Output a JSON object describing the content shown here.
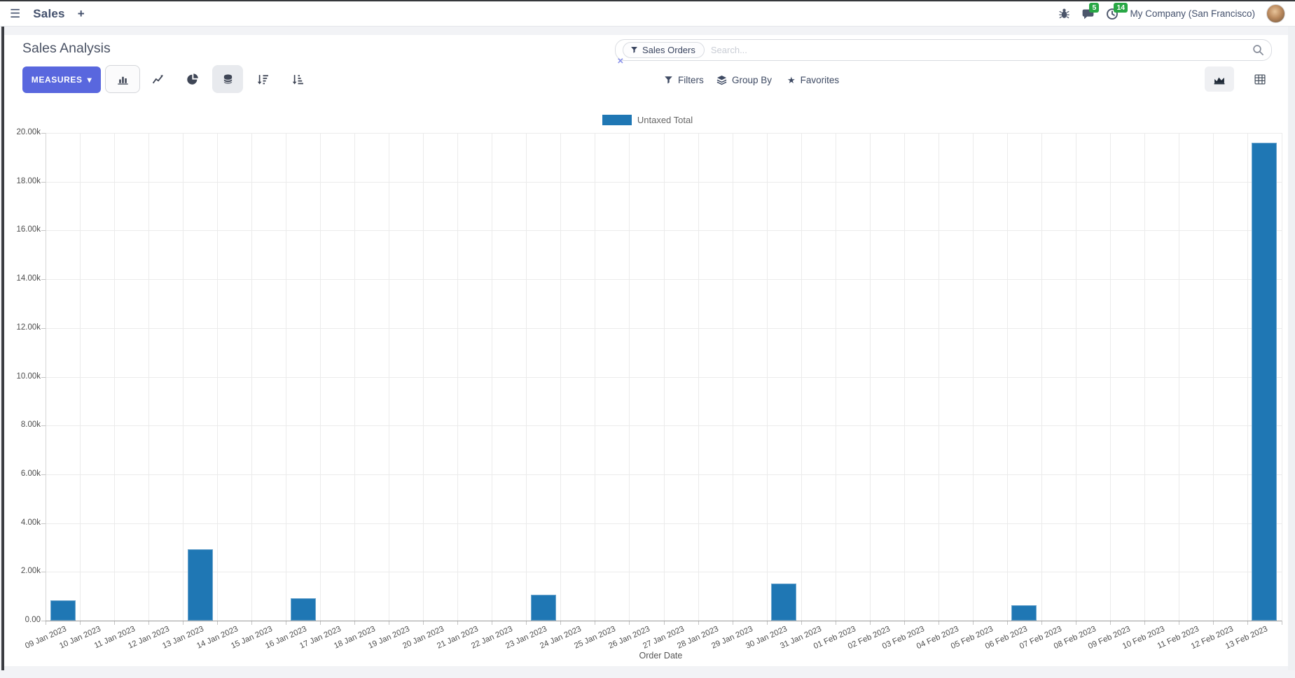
{
  "navbar": {
    "app_name": "Sales",
    "badges": {
      "messages": "5",
      "activities": "14"
    },
    "company": "My Company (San Francisco)"
  },
  "icons": {
    "hamburger": "☰",
    "plus": "+",
    "star": "★",
    "close": "✕",
    "caret_down": "▾"
  },
  "control_panel": {
    "title": "Sales Analysis",
    "measures_label": "MEASURES",
    "search": {
      "facet_label": "Sales Orders",
      "placeholder": "Search..."
    },
    "filters_label": "Filters",
    "group_by_label": "Group By",
    "favorites_label": "Favorites"
  },
  "colors": {
    "accent": "#5967de",
    "bar": "#1f77b4",
    "badge_green": "#28a745"
  },
  "chart_data": {
    "type": "bar",
    "title": "Sales Analysis",
    "xlabel": "Order Date",
    "ylabel": "",
    "ylim": [
      0,
      20000
    ],
    "ytick_step": 2000,
    "ytick_labels": [
      "0.00",
      "2.00k",
      "4.00k",
      "6.00k",
      "8.00k",
      "10.00k",
      "12.00k",
      "14.00k",
      "16.00k",
      "18.00k",
      "20.00k"
    ],
    "grid": true,
    "legend_position": "top-center",
    "categories": [
      "09 Jan 2023",
      "10 Jan 2023",
      "11 Jan 2023",
      "12 Jan 2023",
      "13 Jan 2023",
      "14 Jan 2023",
      "15 Jan 2023",
      "16 Jan 2023",
      "17 Jan 2023",
      "18 Jan 2023",
      "19 Jan 2023",
      "20 Jan 2023",
      "21 Jan 2023",
      "22 Jan 2023",
      "23 Jan 2023",
      "24 Jan 2023",
      "25 Jan 2023",
      "26 Jan 2023",
      "27 Jan 2023",
      "28 Jan 2023",
      "29 Jan 2023",
      "30 Jan 2023",
      "31 Jan 2023",
      "01 Feb 2023",
      "02 Feb 2023",
      "03 Feb 2023",
      "04 Feb 2023",
      "05 Feb 2023",
      "06 Feb 2023",
      "07 Feb 2023",
      "08 Feb 2023",
      "09 Feb 2023",
      "10 Feb 2023",
      "11 Feb 2023",
      "12 Feb 2023",
      "13 Feb 2023"
    ],
    "series": [
      {
        "name": "Untaxed Total",
        "color": "#1f77b4",
        "values": [
          830,
          0,
          0,
          0,
          2930,
          0,
          0,
          920,
          0,
          0,
          0,
          0,
          0,
          0,
          1060,
          0,
          0,
          0,
          0,
          0,
          0,
          1520,
          0,
          0,
          0,
          0,
          0,
          0,
          630,
          0,
          0,
          0,
          0,
          0,
          0,
          19600
        ]
      }
    ]
  }
}
